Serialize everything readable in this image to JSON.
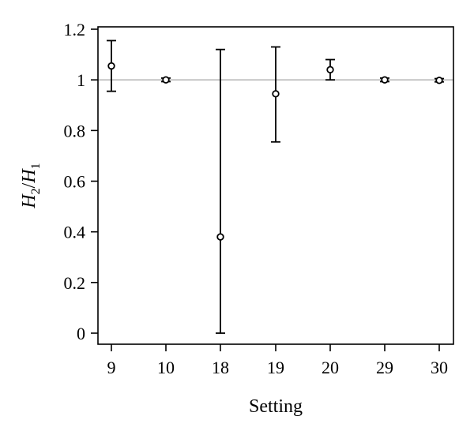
{
  "chart_data": {
    "type": "scatter",
    "xlabel": "Setting",
    "ylabel": {
      "num_var": "H",
      "num_sub": "2",
      "sep": "/",
      "den_var": "H",
      "den_sub": "1"
    },
    "categories": [
      "9",
      "10",
      "18",
      "19",
      "20",
      "29",
      "30"
    ],
    "ylim": [
      0,
      1.2
    ],
    "yticks": [
      "0",
      "0.2",
      "0.4",
      "0.6",
      "0.8",
      "1",
      "1.2"
    ],
    "reference_line": 1,
    "points": [
      {
        "x": "9",
        "y": 1.055,
        "lower": 0.955,
        "upper": 1.155
      },
      {
        "x": "10",
        "y": 1.0,
        "lower": 0.993,
        "upper": 1.007
      },
      {
        "x": "18",
        "y": 0.38,
        "lower": 0.0,
        "upper": 1.12
      },
      {
        "x": "19",
        "y": 0.945,
        "lower": 0.755,
        "upper": 1.13
      },
      {
        "x": "20",
        "y": 1.04,
        "lower": 1.0,
        "upper": 1.08
      },
      {
        "x": "29",
        "y": 1.0,
        "lower": 0.993,
        "upper": 1.007
      },
      {
        "x": "30",
        "y": 0.998,
        "lower": 0.992,
        "upper": 1.005
      }
    ],
    "grid": false,
    "colors": {
      "marker": "#000000",
      "reference_line": "#bbbbbb",
      "axis": "#000000"
    }
  }
}
